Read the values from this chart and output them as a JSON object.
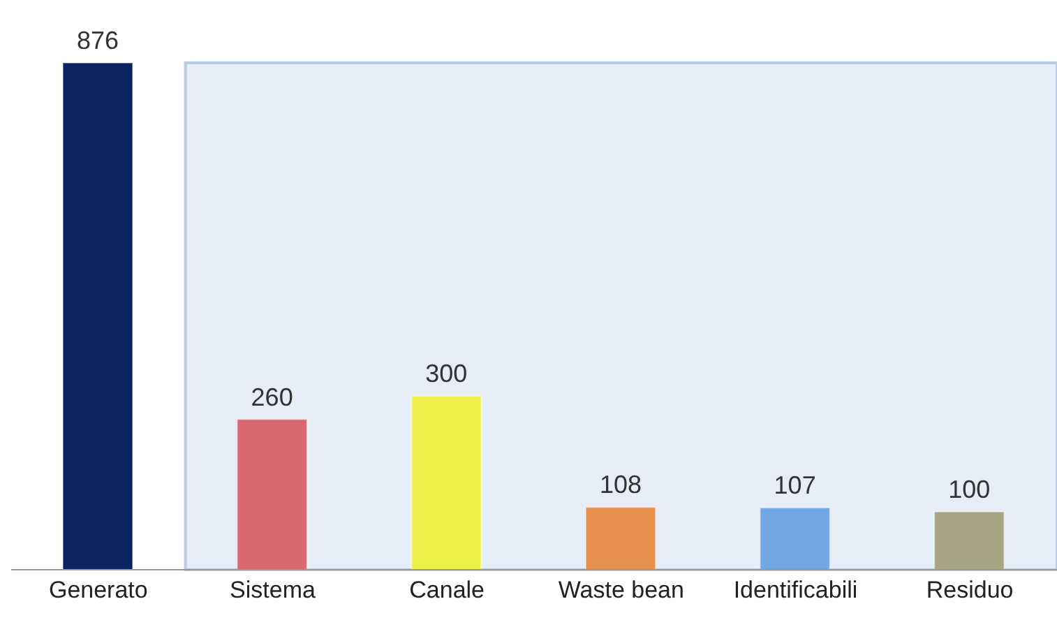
{
  "chart_data": {
    "type": "bar",
    "categories": [
      "Generato",
      "Sistema",
      "Canale",
      "Waste bean",
      "Identificabili",
      "Residuo"
    ],
    "values": [
      876,
      260,
      300,
      108,
      107,
      100
    ],
    "colors": [
      "#0b2461",
      "#d9676f",
      "#eef04a",
      "#e8914f",
      "#72a7e6",
      "#a8a584"
    ],
    "data_labels": true,
    "bands": [
      {
        "axis": "x",
        "from": "Sistema",
        "to": "Residuo",
        "color": "#dce6f2"
      }
    ],
    "grid": false,
    "legend": false
  }
}
